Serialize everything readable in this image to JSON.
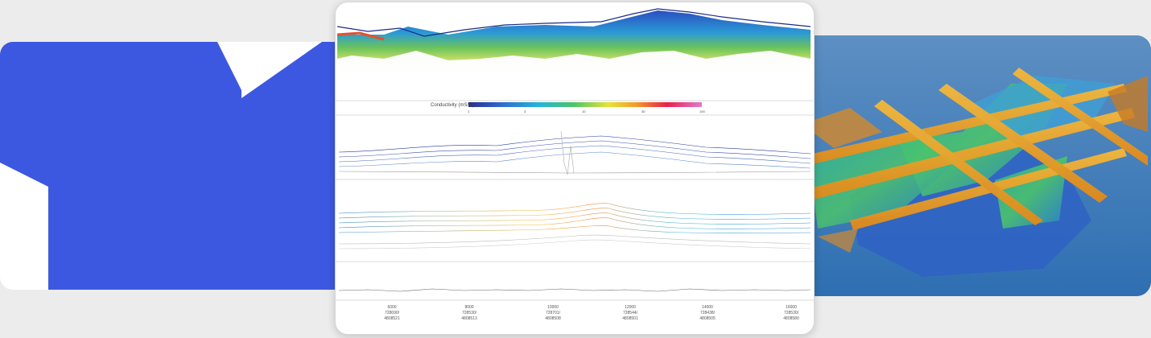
{
  "colorbar": {
    "label": "Conductivity (mS/m)",
    "ticks": [
      "1",
      "3",
      "10",
      "30",
      "100"
    ]
  },
  "x_axis": {
    "labels": [
      {
        "top": "6000",
        "mid": "728690/",
        "bottom": "4808521"
      },
      {
        "top": "8000",
        "mid": "728530/",
        "bottom": "4808513"
      },
      {
        "top": "10000",
        "mid": "728701/",
        "bottom": "4808508"
      },
      {
        "top": "12000",
        "mid": "728544/",
        "bottom": "4808501"
      },
      {
        "top": "14000",
        "mid": "728438/",
        "bottom": "4808505"
      },
      {
        "top": "16000",
        "mid": "728530/",
        "bottom": "4808580"
      }
    ]
  },
  "colors": {
    "background": "#ececec",
    "right_card_blue": "#3b78b8"
  }
}
